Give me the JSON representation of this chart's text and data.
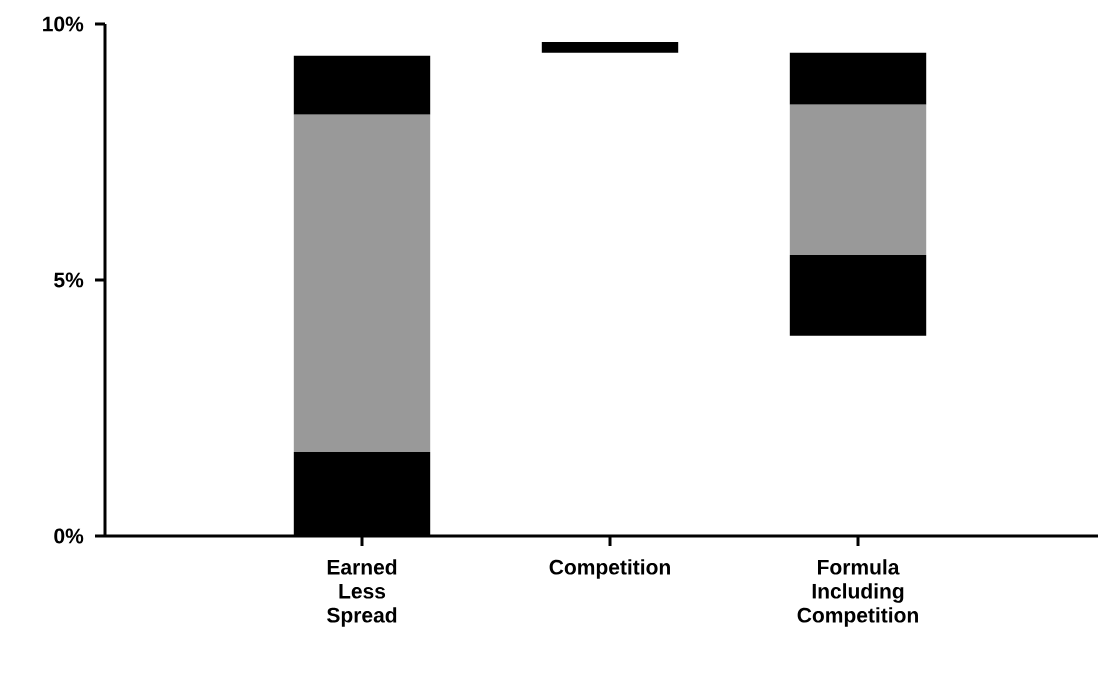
{
  "chart_data": {
    "type": "bar",
    "categories": [
      "Earned Less Spread",
      "Competition",
      "Formula Including Competition"
    ],
    "series": [
      {
        "color": "#000000",
        "base": [
          0,
          null,
          3.91
        ],
        "values": [
          1.64,
          null,
          1.58
        ]
      },
      {
        "color": "#999999",
        "base": [
          1.64,
          null,
          5.49
        ],
        "values": [
          6.59,
          null,
          2.94
        ]
      },
      {
        "color": "#000000",
        "base": [
          8.23,
          9.44,
          8.43
        ],
        "values": [
          1.15,
          0.21,
          1.01
        ]
      }
    ],
    "ylim": [
      0,
      10
    ],
    "yticks": [
      {
        "value": 0,
        "label": "0%"
      },
      {
        "value": 5,
        "label": "5%"
      },
      {
        "value": 10,
        "label": "10%"
      }
    ],
    "grid": false
  }
}
